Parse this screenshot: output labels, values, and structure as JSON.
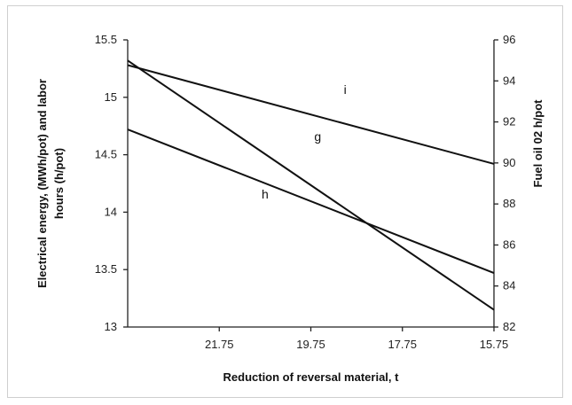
{
  "chart_data": {
    "type": "line",
    "xlabel": "Reduction of reversal material, t",
    "ylabel_left_line1": "Electrical energy, (MWh/pot) and labor",
    "ylabel_left_line2": "hours (h/pot)",
    "ylabel_right": "Fuel oil 02 h/pot",
    "x_ticks": [
      "21.75",
      "19.75",
      "17.75",
      "15.75"
    ],
    "x_tick_values": [
      21.75,
      19.75,
      17.75,
      15.75
    ],
    "xlim": [
      23.75,
      15.75
    ],
    "y_left_ticks": [
      "15.5",
      "15",
      "14.5",
      "14",
      "13.5",
      "13"
    ],
    "y_left_tick_values": [
      15.5,
      15,
      14.5,
      14,
      13.5,
      13
    ],
    "ylim_left": [
      13,
      15.5
    ],
    "y_right_ticks": [
      "96",
      "94",
      "92",
      "90",
      "88",
      "86",
      "84",
      "82"
    ],
    "y_right_tick_values": [
      96,
      94,
      92,
      90,
      88,
      86,
      84,
      82
    ],
    "ylim_right": [
      82,
      96
    ],
    "series": [
      {
        "name": "i",
        "axis": "left",
        "x": [
          23.75,
          15.75
        ],
        "y": [
          15.28,
          14.42
        ]
      },
      {
        "name": "g",
        "axis": "left",
        "x": [
          23.75,
          15.75
        ],
        "y": [
          15.32,
          13.15
        ]
      },
      {
        "name": "h",
        "axis": "left",
        "x": [
          23.75,
          15.75
        ],
        "y": [
          14.72,
          13.47
        ]
      }
    ],
    "annotations": [
      {
        "text": "i",
        "x": 19.0,
        "y": 15.03
      },
      {
        "text": "g",
        "x": 19.6,
        "y": 14.62
      },
      {
        "text": "h",
        "x": 20.75,
        "y": 14.12
      }
    ],
    "grid": false,
    "legend": "none"
  }
}
